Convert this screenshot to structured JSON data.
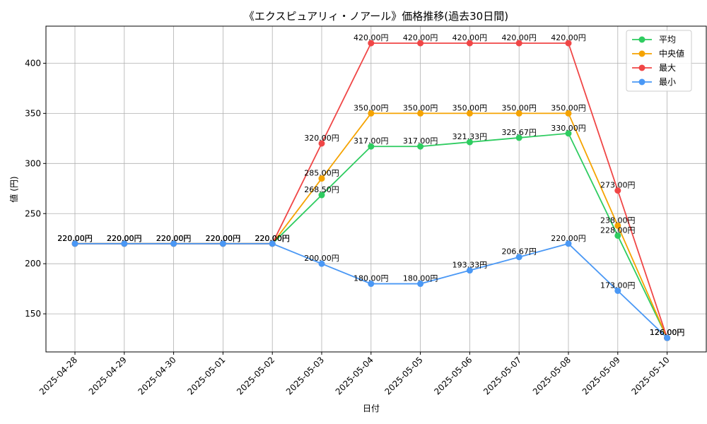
{
  "chart_data": {
    "type": "line",
    "title": "《エクスピュアリィ・ノアール》価格推移(過去30日間)",
    "xlabel": "日付",
    "ylabel": "値 (円)",
    "categories": [
      "2025-04-28",
      "2025-04-29",
      "2025-04-30",
      "2025-05-01",
      "2025-05-02",
      "2025-05-03",
      "2025-05-04",
      "2025-05-05",
      "2025-05-06",
      "2025-05-07",
      "2025-05-08",
      "2025-05-09",
      "2025-05-10"
    ],
    "ylim": [
      112,
      437
    ],
    "yticks": [
      150,
      200,
      250,
      300,
      350,
      400
    ],
    "grid": true,
    "legend_position": "top-right",
    "value_suffix": "円",
    "series": [
      {
        "name": "平均",
        "color": "#2ecc60",
        "values": [
          220,
          220,
          220,
          220,
          220,
          268.5,
          317.0,
          317.0,
          321.33,
          325.67,
          330.0,
          228.0,
          126.0
        ]
      },
      {
        "name": "中央値",
        "color": "#f5a300",
        "values": [
          220,
          220,
          220,
          220,
          220,
          285.0,
          350.0,
          350.0,
          350.0,
          350.0,
          350.0,
          238.0,
          126.0
        ]
      },
      {
        "name": "最大",
        "color": "#f04646",
        "values": [
          220,
          220,
          220,
          220,
          220,
          320.0,
          420.0,
          420.0,
          420.0,
          420.0,
          420.0,
          273.0,
          126.0
        ]
      },
      {
        "name": "最小",
        "color": "#4a98f5",
        "values": [
          220,
          220,
          220,
          220,
          220,
          200.0,
          180.0,
          180.0,
          193.33,
          206.67,
          220.0,
          173.0,
          126.0
        ]
      }
    ]
  }
}
